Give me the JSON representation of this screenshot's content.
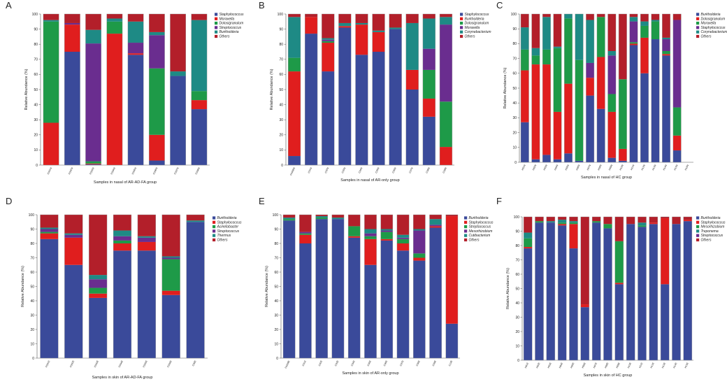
{
  "colors": {
    "Staphylococcus": "#3a4a9a",
    "Burkholderia": "#3a4a9a",
    "Moraxella": "#e01e1e",
    "Dolosigranulum": "#1e9a48",
    "Streptococcus": "#6a2d8f",
    "Others": "#b31f2a",
    "Corynebacterium": "#1e8a85",
    "Cutibacterium": "#1e8a85",
    "Thermus": "#1e8a85",
    "Treponema": "#1e8a85",
    "Acinetobacter": "#1e9a48",
    "Mesorhizobium": "#1e9a48"
  },
  "chart_data": [
    {
      "type": "bar",
      "stacked": true,
      "label": "A",
      "xlabel": "Samples in nasal of AR-AD-FA group",
      "ylabel": "Relative Abundance (%)",
      "ylim": [
        0,
        100
      ],
      "categories": [
        "FD01N",
        "FD02N",
        "FD03N",
        "FD04N",
        "FD05N",
        "FD06N",
        "FD07N",
        "FD08N"
      ],
      "legend": [
        "Staphylococcus",
        "Moraxella",
        "Dolosigranulum",
        "Streptococcus",
        "Burkholderia",
        "Others"
      ],
      "legend_color_keys": [
        "Staphylococcus",
        "Moraxella",
        "Dolosigranulum",
        "Streptococcus",
        "Corynebacterium",
        "Others"
      ],
      "series": [
        {
          "name": "Staphylococcus",
          "color_key": "Staphylococcus",
          "values": [
            0,
            75,
            0.5,
            0,
            73,
            3,
            59,
            37
          ]
        },
        {
          "name": "Moraxella",
          "color_key": "Moraxella",
          "values": [
            28,
            18,
            0.5,
            87,
            1,
            17,
            0,
            6
          ]
        },
        {
          "name": "Dolosigranulum",
          "color_key": "Dolosigranulum",
          "values": [
            67,
            0,
            1.5,
            8,
            0,
            44,
            0,
            6
          ]
        },
        {
          "name": "Streptococcus",
          "color_key": "Streptococcus",
          "values": [
            0,
            1,
            78,
            0,
            7,
            22,
            0,
            0
          ]
        },
        {
          "name": "Burkholderia",
          "color_key": "Corynebacterium",
          "values": [
            1,
            0,
            9,
            2,
            14,
            2,
            3,
            47
          ]
        },
        {
          "name": "Others",
          "color_key": "Others",
          "values": [
            4,
            6,
            10.5,
            3,
            5,
            12,
            38,
            4
          ]
        }
      ]
    },
    {
      "type": "bar",
      "stacked": true,
      "label": "B",
      "xlabel": "Samples in nasal of AR-only group",
      "ylabel": "Relative Abundance (%)",
      "ylim": [
        0,
        100
      ],
      "categories": [
        "FA009N",
        "C01N",
        "C02N",
        "C03N",
        "C04N",
        "C05N",
        "C06N",
        "C07N",
        "C08N",
        "C09N"
      ],
      "legend": [
        "Staphylococcus",
        "Burkholderia",
        "Dolosigranulum",
        "Moraxella",
        "Corynebacterium",
        "Others"
      ],
      "legend_color_keys": [
        "Staphylococcus",
        "Moraxella",
        "Dolosigranulum",
        "Streptococcus",
        "Corynebacterium",
        "Others"
      ],
      "series": [
        {
          "name": "Staphylococcus",
          "color_key": "Staphylococcus",
          "values": [
            6,
            87,
            62,
            91,
            73,
            75,
            90,
            50,
            32,
            0
          ]
        },
        {
          "name": "Burkholderia",
          "color_key": "Moraxella",
          "values": [
            56,
            11,
            19,
            1,
            20,
            13,
            0,
            13,
            12,
            12
          ]
        },
        {
          "name": "Dolosigranulum",
          "color_key": "Dolosigranulum",
          "values": [
            9,
            0,
            1,
            0,
            0,
            0,
            0,
            0,
            19,
            30
          ]
        },
        {
          "name": "Moraxella",
          "color_key": "Streptococcus",
          "values": [
            0,
            0,
            1,
            0,
            0,
            0,
            0,
            0,
            14,
            51
          ]
        },
        {
          "name": "Corynebacterium",
          "color_key": "Corynebacterium",
          "values": [
            27,
            0,
            1,
            2,
            1,
            1,
            1,
            31,
            20,
            5
          ]
        },
        {
          "name": "Others",
          "color_key": "Others",
          "values": [
            2,
            2,
            16,
            6,
            6,
            11,
            9,
            6,
            3,
            2
          ]
        }
      ]
    },
    {
      "type": "bar",
      "stacked": true,
      "label": "C",
      "xlabel": "Samples in nasal of HC group",
      "ylabel": "Relative Abundance (%)",
      "ylim": [
        0,
        100
      ],
      "categories": [
        "H01N",
        "H02N",
        "H03N",
        "H04N",
        "H05N",
        "H06N",
        "H07N",
        "H08N",
        "H09N",
        "H10N",
        "H11N",
        "H12N",
        "H13N",
        "H14N",
        "H15N",
        "H16N"
      ],
      "legend": [
        "Burkholderia",
        "Dolosigranulum",
        "Moraxella",
        "Staphylococcus",
        "Corynebacterium",
        "Others"
      ],
      "legend_color_keys": [
        "Staphylococcus",
        "Moraxella",
        "Dolosigranulum",
        "Streptococcus",
        "Corynebacterium",
        "Others"
      ],
      "series": [
        {
          "name": "Burkholderia",
          "color_key": "Staphylococcus",
          "values": [
            27,
            2,
            5,
            2,
            6,
            1,
            45,
            36,
            3,
            1,
            79,
            60,
            83,
            72,
            8,
            0
          ]
        },
        {
          "name": "Dolosigranulum",
          "color_key": "Moraxella",
          "values": [
            35,
            64,
            61,
            32,
            47,
            0,
            12,
            35,
            31,
            8,
            1,
            24,
            0,
            1,
            10,
            0
          ]
        },
        {
          "name": "Moraxella",
          "color_key": "Dolosigranulum",
          "values": [
            14,
            6,
            10,
            43,
            44,
            68,
            0,
            27,
            12,
            47,
            1,
            8,
            12,
            2,
            19,
            0
          ]
        },
        {
          "name": "Staphylococcus",
          "color_key": "Streptococcus",
          "values": [
            0,
            0,
            0,
            0,
            0,
            0,
            10,
            0,
            26,
            0,
            14,
            0,
            0,
            8,
            59,
            0
          ]
        },
        {
          "name": "Corynebacterium",
          "color_key": "Corynebacterium",
          "values": [
            15,
            5,
            22,
            1,
            3,
            31,
            29,
            0,
            3,
            0,
            3,
            3,
            1,
            1,
            0,
            0
          ]
        },
        {
          "name": "Others",
          "color_key": "Others",
          "values": [
            9,
            23,
            2,
            22,
            0,
            0,
            4,
            2,
            25,
            44,
            2,
            5,
            4,
            16,
            4,
            0
          ]
        }
      ]
    },
    {
      "type": "bar",
      "stacked": true,
      "label": "D",
      "xlabel": "Samples in skin of AR-AD-FA group",
      "ylabel": "Relative Abundance (%)",
      "ylim": [
        0,
        100
      ],
      "categories": [
        "FD01E",
        "FD02E",
        "FD03E",
        "FD04E",
        "FD05E",
        "FD06E",
        "C08E"
      ],
      "legend": [
        "Burkholderia",
        "Staphylococcus",
        "Acinetobacter",
        "Streptococcus",
        "Thermus",
        "Others"
      ],
      "legend_color_keys": [
        "Staphylococcus",
        "Moraxella",
        "Dolosigranulum",
        "Streptococcus",
        "Corynebacterium",
        "Others"
      ],
      "series": [
        {
          "name": "Burkholderia",
          "color_key": "Staphylococcus",
          "values": [
            83,
            65,
            42,
            75,
            75,
            44,
            95
          ]
        },
        {
          "name": "Staphylococcus",
          "color_key": "Moraxella",
          "values": [
            4,
            19,
            3,
            5,
            6,
            3,
            0
          ]
        },
        {
          "name": "Acinetobacter",
          "color_key": "Dolosigranulum",
          "values": [
            1,
            0,
            4,
            2,
            0,
            22,
            0
          ]
        },
        {
          "name": "Streptococcus",
          "color_key": "Streptococcus",
          "values": [
            2,
            2,
            6,
            3,
            3,
            1,
            0
          ]
        },
        {
          "name": "Thermus",
          "color_key": "Corynebacterium",
          "values": [
            1,
            1,
            3,
            4,
            1,
            1,
            1
          ]
        },
        {
          "name": "Others",
          "color_key": "Others",
          "values": [
            9,
            13,
            42,
            11,
            15,
            29,
            4
          ]
        }
      ]
    },
    {
      "type": "bar",
      "stacked": true,
      "label": "E",
      "xlabel": "Samples in skin of AR-only group",
      "ylabel": "Relative Abundance (%)",
      "ylim": [
        0,
        100
      ],
      "categories": [
        "FA009E",
        "C01E",
        "C02E",
        "C03E",
        "C04E",
        "C05E",
        "C06E",
        "C07E",
        "C08E",
        "C09E",
        "C10E"
      ],
      "legend": [
        "Burkholderia",
        "Staphylococcus",
        "Streptococcus",
        "Mesorhizobium",
        "Cutibacterium",
        "Others"
      ],
      "legend_color_keys": [
        "Staphylococcus",
        "Moraxella",
        "Dolosigranulum",
        "Streptococcus",
        "Corynebacterium",
        "Others"
      ],
      "series": [
        {
          "name": "Burkholderia",
          "color_key": "Staphylococcus",
          "values": [
            96,
            80,
            97,
            97,
            84,
            65,
            82,
            75,
            68,
            91,
            24
          ]
        },
        {
          "name": "Staphylococcus",
          "color_key": "Moraxella",
          "values": [
            0,
            6,
            0,
            0,
            1,
            18,
            1,
            5,
            2,
            1,
            75
          ]
        },
        {
          "name": "Streptococcus",
          "color_key": "Dolosigranulum",
          "values": [
            1,
            1,
            1,
            0,
            7,
            2,
            5,
            3,
            3,
            0,
            0
          ]
        },
        {
          "name": "Mesorhizobium",
          "color_key": "Streptococcus",
          "values": [
            0,
            1,
            0,
            0,
            0,
            2,
            1,
            1,
            16,
            1,
            0
          ]
        },
        {
          "name": "Cutibacterium",
          "color_key": "Corynebacterium",
          "values": [
            1,
            0,
            1,
            1,
            0,
            3,
            1,
            2,
            1,
            4,
            0
          ]
        },
        {
          "name": "Others",
          "color_key": "Others",
          "values": [
            2,
            12,
            1,
            2,
            8,
            10,
            10,
            14,
            10,
            3,
            1
          ]
        }
      ]
    },
    {
      "type": "bar",
      "stacked": true,
      "label": "F",
      "xlabel": "Samples in skin of HC group",
      "ylabel": "Relative Abundance (%)",
      "ylim": [
        0,
        100
      ],
      "categories": [
        "H01E",
        "H02E",
        "H03E",
        "H04E",
        "H05E",
        "H06E",
        "H07E",
        "H08E",
        "H09E",
        "H10E",
        "H11E",
        "H12E",
        "H13E",
        "H14E",
        "H15E"
      ],
      "legend": [
        "Burkholderia",
        "Staphylococcus",
        "Mesorhizobium",
        "Treponema",
        "Streptococcus",
        "Others"
      ],
      "legend_color_keys": [
        "Staphylococcus",
        "Moraxella",
        "Dolosigranulum",
        "Corynebacterium",
        "Streptococcus",
        "Others"
      ],
      "series": [
        {
          "name": "Burkholderia",
          "color_key": "Staphylococcus",
          "values": [
            78,
            96,
            96,
            94,
            78,
            37,
            96,
            92,
            53,
            95,
            93,
            95,
            53,
            95,
            97
          ]
        },
        {
          "name": "Staphylococcus",
          "color_key": "Moraxella",
          "values": [
            1,
            0,
            0,
            1,
            17,
            2,
            0,
            0,
            1,
            0,
            0,
            1,
            46,
            0,
            1
          ]
        },
        {
          "name": "Mesorhizobium",
          "color_key": "Dolosigranulum",
          "values": [
            6,
            1,
            0,
            1,
            1,
            0,
            1,
            3,
            29,
            0,
            1,
            0,
            0,
            0,
            0
          ]
        },
        {
          "name": "Treponema",
          "color_key": "Corynebacterium",
          "values": [
            4,
            0,
            1,
            2,
            1,
            0,
            0,
            0,
            0,
            0,
            2,
            0,
            0,
            0,
            0
          ]
        },
        {
          "name": "Streptococcus",
          "color_key": "Streptococcus",
          "values": [
            0,
            0,
            0,
            0,
            0,
            0,
            0,
            0,
            0,
            0,
            0,
            0,
            0,
            0,
            0
          ]
        },
        {
          "name": "Others",
          "color_key": "Others",
          "values": [
            11,
            3,
            3,
            2,
            3,
            61,
            3,
            5,
            17,
            5,
            4,
            4,
            1,
            5,
            2
          ]
        }
      ]
    }
  ]
}
